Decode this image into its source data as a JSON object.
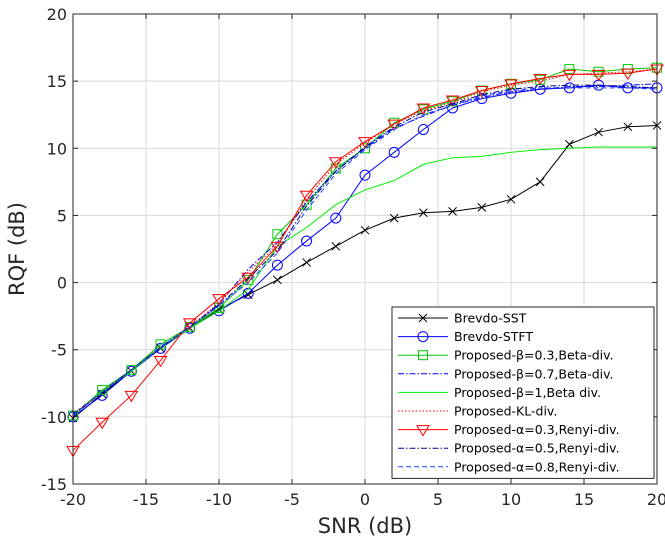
{
  "chart_data": {
    "type": "line",
    "xlabel": "SNR (dB)",
    "ylabel": "RQF (dB)",
    "xlim": [
      -20,
      20
    ],
    "ylim": [
      -15,
      20
    ],
    "xticks": [
      -20,
      -15,
      -10,
      -5,
      0,
      5,
      10,
      15,
      20
    ],
    "yticks": [
      -15,
      -10,
      -5,
      0,
      5,
      10,
      15,
      20
    ],
    "xtick_labels": [
      "-20",
      "-15",
      "-10",
      "-5",
      "0",
      "5",
      "10",
      "15",
      "20"
    ],
    "ytick_labels": [
      "-15",
      "-10",
      "-5",
      "0",
      "5",
      "10",
      "15",
      "20"
    ],
    "grid": true,
    "legend_position": "bottom-right",
    "x": [
      -20,
      -18,
      -16,
      -14,
      -12,
      -10,
      -8,
      -6,
      -4,
      -2,
      0,
      2,
      4,
      6,
      8,
      10,
      12,
      14,
      16,
      18,
      20
    ],
    "series": [
      {
        "name": "Brevdo-SST",
        "color": "#000000",
        "marker": "x",
        "dash": "solid",
        "values": [
          -10.1,
          -8.3,
          -6.6,
          -4.9,
          -3.4,
          -2.0,
          -0.9,
          0.2,
          1.5,
          2.7,
          3.9,
          4.8,
          5.2,
          5.3,
          5.6,
          6.2,
          7.5,
          10.3,
          11.2,
          11.6,
          11.7
        ]
      },
      {
        "name": "Brevdo-STFT",
        "color": "#0000ff",
        "marker": "circle",
        "dash": "solid",
        "values": [
          -10.0,
          -8.4,
          -6.6,
          -4.9,
          -3.4,
          -2.1,
          -0.8,
          1.3,
          3.1,
          4.8,
          8.0,
          9.7,
          11.4,
          13.0,
          13.7,
          14.1,
          14.4,
          14.5,
          14.7,
          14.5,
          14.5
        ]
      },
      {
        "name": "Proposed-β=0.3,Beta-div.",
        "color": "#00cc00",
        "marker": "square",
        "dash": "solid",
        "values": [
          -9.9,
          -8.0,
          -6.5,
          -4.6,
          -3.3,
          -1.9,
          0.2,
          3.6,
          5.8,
          8.5,
          10.0,
          11.9,
          12.9,
          13.5,
          14.3,
          14.8,
          15.1,
          15.9,
          15.7,
          15.9,
          16.0
        ]
      },
      {
        "name": "Proposed-β=0.7,Beta-div.",
        "color": "#0000ff",
        "marker": "none",
        "dash": "dashdot",
        "values": [
          -9.8,
          -8.1,
          -6.5,
          -4.8,
          -3.3,
          -1.6,
          1.0,
          3.0,
          6.0,
          8.3,
          10.0,
          11.5,
          12.4,
          13.2,
          13.8,
          14.2,
          14.4,
          14.6,
          14.6,
          14.7,
          14.8
        ]
      },
      {
        "name": "Proposed-β=1,Beta div.",
        "color": "#00ee00",
        "marker": "none",
        "dash": "solid",
        "values": [
          -9.9,
          -8.1,
          -6.6,
          -4.8,
          -3.4,
          -2.1,
          -0.5,
          2.7,
          4.1,
          5.8,
          6.9,
          7.6,
          8.8,
          9.3,
          9.4,
          9.7,
          9.9,
          10.0,
          10.1,
          10.1,
          10.1
        ]
      },
      {
        "name": "Proposed-KL-div.",
        "color": "#ff0000",
        "marker": "none",
        "dash": "dotted",
        "values": [
          -9.8,
          -8.2,
          -6.5,
          -4.8,
          -3.3,
          -1.5,
          0.8,
          2.8,
          6.2,
          8.8,
          10.4,
          11.8,
          12.8,
          13.4,
          14.2,
          14.7,
          15.0,
          15.5,
          15.6,
          15.7,
          15.9
        ]
      },
      {
        "name": "Proposed-α=0.3,Renyi-div.",
        "color": "#ff0000",
        "marker": "triangle-down",
        "dash": "solid",
        "values": [
          -12.5,
          -10.4,
          -8.4,
          -5.8,
          -3.0,
          -1.2,
          0.4,
          2.7,
          6.5,
          9.0,
          10.5,
          11.8,
          13.0,
          13.6,
          14.3,
          14.8,
          15.2,
          15.5,
          15.5,
          15.6,
          15.9
        ]
      },
      {
        "name": "Proposed-α=0.5,Renyi-div.",
        "color": "#00008b",
        "marker": "none",
        "dash": "dashdot",
        "values": [
          -9.9,
          -8.2,
          -6.5,
          -4.8,
          -3.3,
          -1.7,
          0.3,
          2.4,
          5.7,
          8.3,
          10.1,
          11.6,
          12.7,
          13.3,
          14.0,
          14.4,
          14.6,
          14.7,
          14.7,
          14.6,
          14.5
        ]
      },
      {
        "name": "Proposed-α=0.8,Renyi-div.",
        "color": "#1f3fff",
        "marker": "none",
        "dash": "dashed",
        "values": [
          -9.9,
          -8.2,
          -6.5,
          -4.8,
          -3.3,
          -1.7,
          0.0,
          2.2,
          5.4,
          8.1,
          9.9,
          11.4,
          12.5,
          13.2,
          13.9,
          14.3,
          14.5,
          14.5,
          14.5,
          14.5,
          14.4
        ]
      }
    ]
  }
}
